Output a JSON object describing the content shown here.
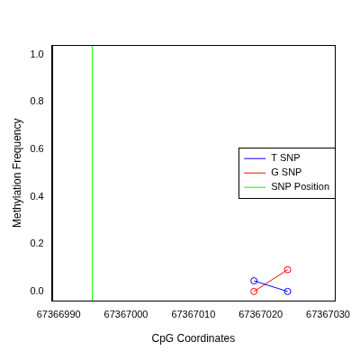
{
  "chart_data": {
    "type": "line",
    "x_label": "CpG Coordinates",
    "y_label": "Methylation Frequency",
    "x": [
      67367019,
      67367024
    ],
    "series": [
      {
        "name": "T SNP",
        "color": "#0000ff",
        "values": [
          0.045,
          0.0
        ],
        "marker": "circle",
        "line_style": "solid"
      },
      {
        "name": "G SNP",
        "color": "#ff0000",
        "values": [
          0.0,
          0.092
        ],
        "marker": "circle",
        "line_style": "solid"
      },
      {
        "name": "SNP Position",
        "type": "vline",
        "color": "#00ff00",
        "x": [
          67366995
        ],
        "line_style": "solid"
      }
    ],
    "xlim": [
      67366989,
      67367031
    ],
    "xticks": [
      67366990,
      67367000,
      67367010,
      67367020,
      67367030
    ],
    "ylim": [
      -0.04,
      1.04
    ],
    "yticks": [
      {
        "value": 0,
        "label": "0.0"
      },
      {
        "value": 0.2,
        "label": "0.2"
      },
      {
        "value": 0.4,
        "label": "0.4"
      },
      {
        "value": 0.6,
        "label": "0.6"
      },
      {
        "value": 0.8,
        "label": "0.8"
      },
      {
        "value": 1,
        "label": "1.0"
      }
    ],
    "grid": false,
    "legend": "right"
  }
}
